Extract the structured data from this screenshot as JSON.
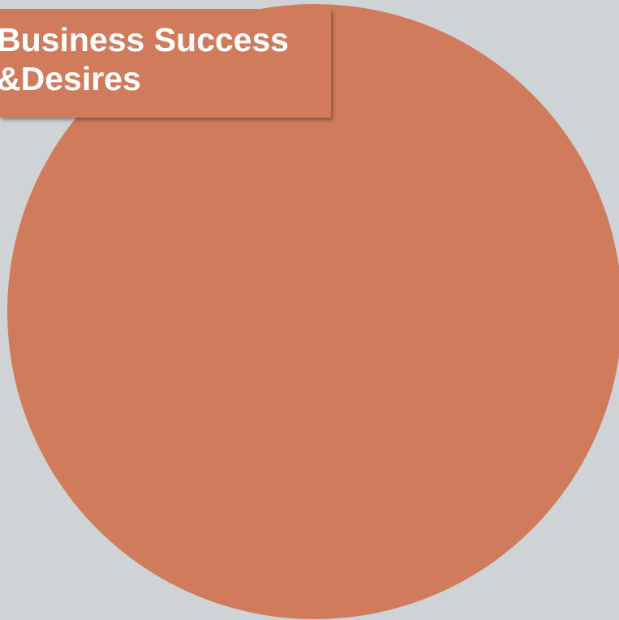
{
  "title": {
    "line1": "Business Success",
    "line2": "&Desires"
  },
  "colors": {
    "background": "#cfd3d6",
    "accent": "#cf7b5c",
    "title_text": "#ffffff"
  }
}
